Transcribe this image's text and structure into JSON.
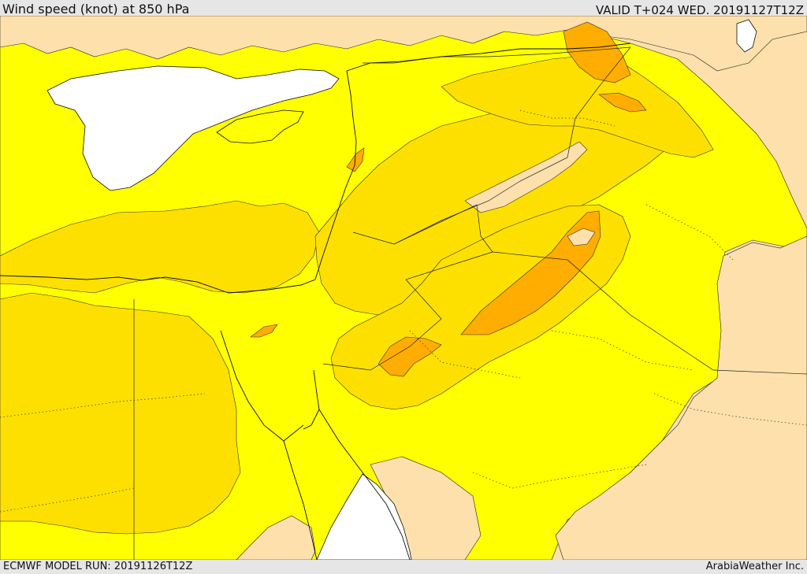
{
  "header": {
    "title": "Wind speed (knot) at 850 hPa",
    "valid": "VALID T+024 WED. 20191127T12Z"
  },
  "footer": {
    "model_run": "ECMWF MODEL RUN: 20191126T12Z",
    "credit": "ArabiaWeather Inc."
  },
  "colors": {
    "speed_class_1": "#fde0ab",
    "speed_class_2": "#ffff00",
    "speed_class_3": "#fee000",
    "speed_class_4": "#fec20a",
    "speed_class_5": "#ffad00",
    "sea_no_data": "#ffffff",
    "border": "#000000",
    "bar_background": "#e6e6e6"
  }
}
